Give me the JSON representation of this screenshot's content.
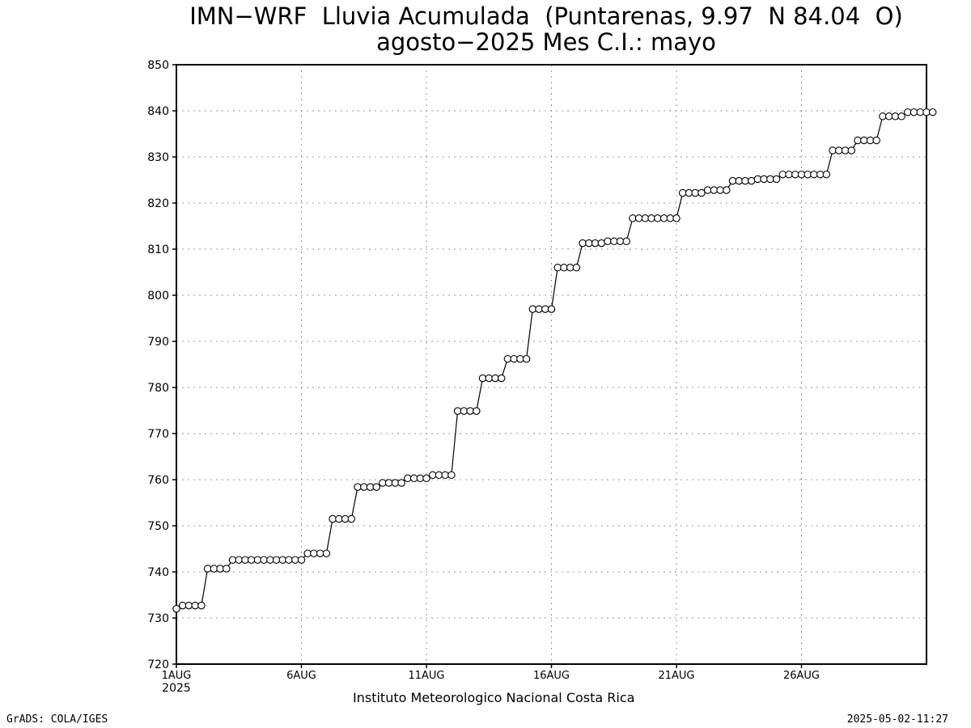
{
  "chart_data": {
    "type": "line",
    "title": "IMN−WRF  Lluvia Acumulada  (Puntarenas, 9.97  N 84.04  O)",
    "subtitle": "agosto−2025 Mes C.I.: mayo",
    "xlabel": "",
    "ylabel": "",
    "ylim": [
      720,
      850
    ],
    "y_ticks": [
      "720",
      "730",
      "740",
      "750",
      "760",
      "770",
      "780",
      "790",
      "800",
      "810",
      "820",
      "830",
      "840",
      "850"
    ],
    "xlim": [
      0,
      30
    ],
    "x_ticks": [
      {
        "x": 0,
        "label": "1AUG",
        "sublabel": "2025"
      },
      {
        "x": 5,
        "label": "6AUG"
      },
      {
        "x": 10,
        "label": "11AUG"
      },
      {
        "x": 15,
        "label": "16AUG"
      },
      {
        "x": 20,
        "label": "21AUG"
      },
      {
        "x": 25,
        "label": "26AUG"
      }
    ],
    "grid": true,
    "marker": "open-circle",
    "series": [
      {
        "step_days": 0.25,
        "values": [
          732.0,
          732.7,
          732.7,
          732.7,
          732.7,
          740.7,
          740.7,
          740.7,
          740.7,
          742.6,
          742.6,
          742.6,
          742.6,
          742.6,
          742.6,
          742.6,
          742.6,
          742.6,
          742.6,
          742.6,
          742.6,
          744.0,
          744.0,
          744.0,
          744.0,
          751.5,
          751.5,
          751.5,
          751.5,
          758.4,
          758.4,
          758.4,
          758.4,
          759.3,
          759.3,
          759.3,
          759.3,
          760.3,
          760.3,
          760.3,
          760.3,
          761.0,
          761.0,
          761.0,
          761.0,
          774.9,
          774.9,
          774.9,
          774.9,
          782.0,
          782.0,
          782.0,
          782.0,
          786.2,
          786.2,
          786.2,
          786.2,
          797.0,
          797.0,
          797.0,
          797.0,
          806.0,
          806.0,
          806.0,
          806.0,
          811.3,
          811.3,
          811.3,
          811.3,
          811.7,
          811.7,
          811.7,
          811.7,
          816.7,
          816.7,
          816.7,
          816.7,
          816.7,
          816.7,
          816.7,
          816.7,
          822.2,
          822.2,
          822.2,
          822.2,
          822.8,
          822.8,
          822.8,
          822.8,
          824.8,
          824.8,
          824.8,
          824.8,
          825.2,
          825.2,
          825.2,
          825.2,
          826.2,
          826.2,
          826.2,
          826.2,
          826.2,
          826.2,
          826.2,
          826.2,
          831.4,
          831.4,
          831.4,
          831.4,
          833.6,
          833.6,
          833.6,
          833.6,
          838.8,
          838.8,
          838.8,
          838.8,
          839.7,
          839.7,
          839.7,
          839.7,
          839.7
        ]
      }
    ]
  },
  "footer": {
    "institution": "Instituto Meteorologico Nacional Costa Rica",
    "credit": "GrADS: COLA/IGES",
    "timestamp": "2025-05-02-11:27"
  }
}
